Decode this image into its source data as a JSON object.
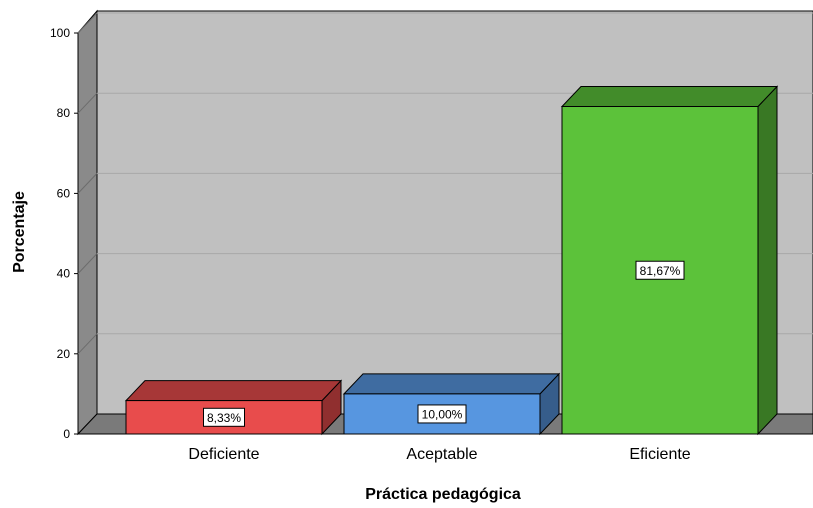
{
  "chart_data": {
    "type": "bar",
    "style": "3d",
    "categories": [
      "Deficiente",
      "Aceptable",
      "Eficiente"
    ],
    "values": [
      8.33,
      10.0,
      81.67
    ],
    "data_labels": [
      "8,33%",
      "10,00%",
      "81,67%"
    ],
    "colors": [
      "#e84c4c",
      "#5796e0",
      "#5cc23a"
    ],
    "xlabel": "Práctica pedagógica",
    "ylabel": "Porcentaje",
    "ylim": [
      0,
      100
    ],
    "yticks": [
      {
        "value": 0,
        "label": "0"
      },
      {
        "value": 20,
        "label": "20"
      },
      {
        "value": 40,
        "label": "40"
      },
      {
        "value": 60,
        "label": "60"
      },
      {
        "value": 80,
        "label": "80"
      },
      {
        "value": 100,
        "label": "100"
      }
    ],
    "grid": true,
    "legend": "none",
    "background_color": "#c0c0c0"
  }
}
